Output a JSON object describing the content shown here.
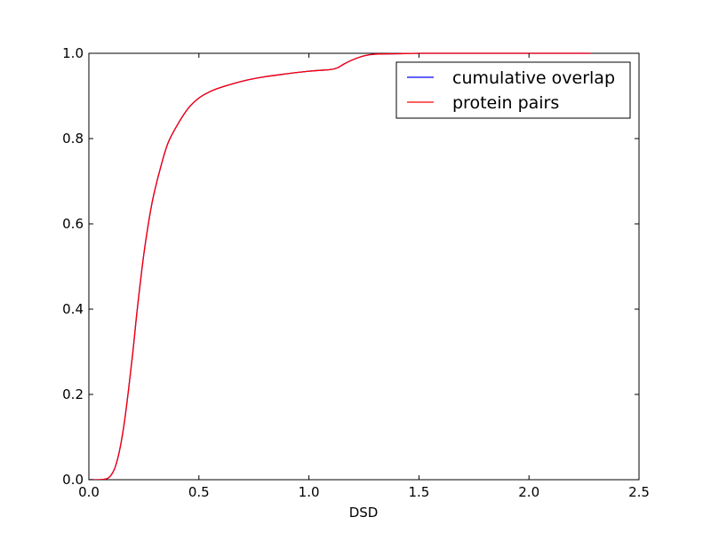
{
  "chart_data": {
    "type": "line",
    "title": "",
    "xlabel": "DSD",
    "ylabel": "",
    "xlim": [
      0.0,
      2.5
    ],
    "ylim": [
      0.0,
      1.0
    ],
    "x_ticks": [
      0.0,
      0.5,
      1.0,
      1.5,
      2.0,
      2.5
    ],
    "x_tick_labels": [
      "0.0",
      "0.5",
      "1.0",
      "1.5",
      "2.0",
      "2.5"
    ],
    "y_ticks": [
      0.0,
      0.2,
      0.4,
      0.6,
      0.8,
      1.0
    ],
    "y_tick_labels": [
      "0.0",
      "0.2",
      "0.4",
      "0.6",
      "0.8",
      "1.0"
    ],
    "grid": false,
    "legend_position": "top-right",
    "series": [
      {
        "name": "cumulative overlap",
        "color": "#0000ff",
        "x": [
          0.0,
          0.05,
          0.08,
          0.1,
          0.12,
          0.14,
          0.16,
          0.18,
          0.2,
          0.22,
          0.25,
          0.28,
          0.3,
          0.33,
          0.36,
          0.4,
          0.45,
          0.5,
          0.55,
          0.6,
          0.7,
          0.8,
          0.9,
          1.0,
          1.05,
          1.1,
          1.13,
          1.16,
          1.2,
          1.25,
          1.3,
          1.4,
          1.5,
          1.7,
          2.0,
          2.28
        ],
        "y": [
          0.0,
          0.0,
          0.002,
          0.01,
          0.03,
          0.07,
          0.13,
          0.21,
          0.3,
          0.4,
          0.53,
          0.63,
          0.68,
          0.74,
          0.79,
          0.83,
          0.87,
          0.895,
          0.91,
          0.92,
          0.935,
          0.945,
          0.952,
          0.958,
          0.96,
          0.962,
          0.966,
          0.975,
          0.985,
          0.994,
          0.998,
          0.999,
          1.0,
          1.0,
          1.0,
          1.0
        ]
      },
      {
        "name": "protein pairs",
        "color": "#ff0000",
        "x": [
          0.0,
          0.05,
          0.08,
          0.1,
          0.12,
          0.14,
          0.16,
          0.18,
          0.2,
          0.22,
          0.25,
          0.28,
          0.3,
          0.33,
          0.36,
          0.4,
          0.45,
          0.5,
          0.55,
          0.6,
          0.7,
          0.8,
          0.9,
          1.0,
          1.05,
          1.1,
          1.13,
          1.16,
          1.2,
          1.25,
          1.3,
          1.4,
          1.5,
          1.7,
          2.0,
          2.28
        ],
        "y": [
          0.0,
          0.0,
          0.002,
          0.01,
          0.03,
          0.07,
          0.13,
          0.21,
          0.3,
          0.4,
          0.53,
          0.63,
          0.68,
          0.74,
          0.79,
          0.83,
          0.87,
          0.895,
          0.91,
          0.92,
          0.935,
          0.945,
          0.952,
          0.958,
          0.96,
          0.962,
          0.966,
          0.975,
          0.985,
          0.994,
          0.998,
          0.999,
          1.0,
          1.0,
          1.0,
          1.0
        ]
      }
    ]
  }
}
